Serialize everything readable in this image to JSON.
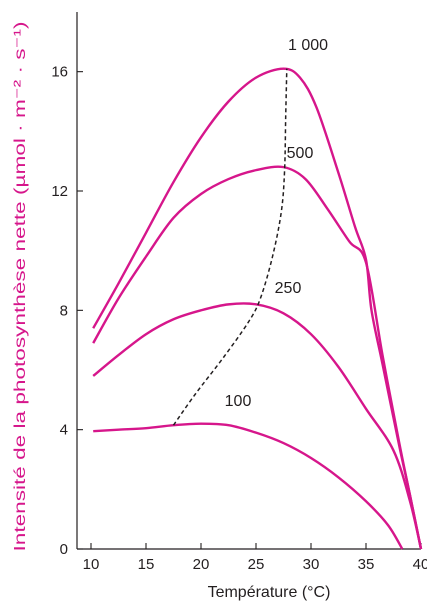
{
  "chart_data": {
    "type": "line",
    "xlabel": "Température (°C)",
    "ylabel": "Intensité de la photosynthèse nette (µmol · m⁻² · s⁻¹)",
    "xlim": [
      10,
      40
    ],
    "ylim": [
      0,
      18
    ],
    "xticks": [
      10,
      15,
      20,
      25,
      30,
      35,
      40
    ],
    "yticks": [
      0,
      4,
      8,
      12,
      16
    ],
    "grid": false,
    "legend": "none",
    "colors": {
      "series": "#d6168b",
      "optimum": "#231f20",
      "axis": "#231f20",
      "ylabel": "#d6168b"
    },
    "series": [
      {
        "label": "1 000",
        "points": [
          [
            10.2,
            7.4
          ],
          [
            12.5,
            8.9
          ],
          [
            15,
            10.6
          ],
          [
            17.5,
            12.3
          ],
          [
            20,
            13.8
          ],
          [
            22.5,
            15.0
          ],
          [
            25,
            15.8
          ],
          [
            27.5,
            16.1
          ],
          [
            29,
            15.8
          ],
          [
            30.5,
            14.8
          ],
          [
            32.5,
            12.6
          ],
          [
            34,
            10.8
          ],
          [
            35,
            9.7
          ],
          [
            35.5,
            8.0
          ],
          [
            36.5,
            6.2
          ],
          [
            38,
            3.5
          ],
          [
            39,
            1.8
          ],
          [
            40,
            0
          ]
        ]
      },
      {
        "label": "500",
        "points": [
          [
            10.2,
            6.9
          ],
          [
            12.5,
            8.4
          ],
          [
            15,
            9.8
          ],
          [
            17.5,
            11.1
          ],
          [
            20,
            11.9
          ],
          [
            22.5,
            12.4
          ],
          [
            25,
            12.7
          ],
          [
            27.5,
            12.8
          ],
          [
            29.5,
            12.4
          ],
          [
            31.5,
            11.4
          ],
          [
            33.5,
            10.3
          ],
          [
            35,
            9.6
          ],
          [
            36.5,
            6.5
          ],
          [
            38,
            3.6
          ],
          [
            39,
            1.8
          ],
          [
            40,
            0
          ]
        ]
      },
      {
        "label": "250",
        "points": [
          [
            10.2,
            5.8
          ],
          [
            12.5,
            6.5
          ],
          [
            15,
            7.2
          ],
          [
            17.5,
            7.7
          ],
          [
            20,
            8.0
          ],
          [
            22.5,
            8.2
          ],
          [
            25,
            8.2
          ],
          [
            27.5,
            7.9
          ],
          [
            30,
            7.2
          ],
          [
            32.5,
            6.1
          ],
          [
            35,
            4.7
          ],
          [
            37.5,
            3.3
          ],
          [
            39,
            1.6
          ],
          [
            40,
            0
          ]
        ]
      },
      {
        "label": "100",
        "points": [
          [
            10.2,
            3.95
          ],
          [
            12.5,
            4.0
          ],
          [
            15,
            4.05
          ],
          [
            17.5,
            4.15
          ],
          [
            20,
            4.2
          ],
          [
            22.5,
            4.15
          ],
          [
            25,
            3.9
          ],
          [
            27.5,
            3.55
          ],
          [
            30,
            3.05
          ],
          [
            32.5,
            2.4
          ],
          [
            35,
            1.6
          ],
          [
            37,
            0.8
          ],
          [
            38.3,
            0
          ]
        ]
      }
    ],
    "optimum_line": {
      "style": "dashed",
      "points": [
        [
          17.5,
          4.15
        ],
        [
          19.5,
          5.2
        ],
        [
          22,
          6.4
        ],
        [
          24.3,
          7.6
        ],
        [
          25.4,
          8.4
        ],
        [
          26.5,
          9.8
        ],
        [
          27.3,
          11.3
        ],
        [
          27.6,
          12.7
        ],
        [
          27.7,
          14.5
        ],
        [
          27.8,
          16.1
        ]
      ]
    }
  }
}
